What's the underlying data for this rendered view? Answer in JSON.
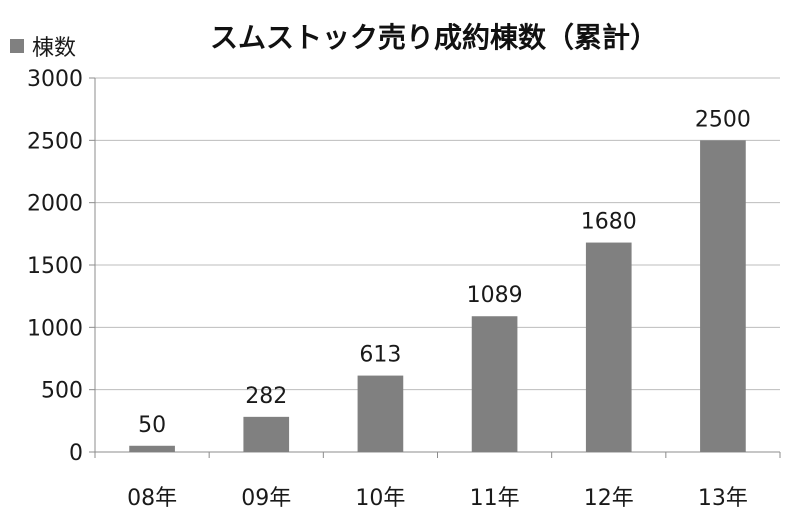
{
  "chart_data": {
    "type": "bar",
    "title": "スムストック売り成約棟数（累計）",
    "legend": "棟数",
    "categories": [
      "08年",
      "09年",
      "10年",
      "11年",
      "12年",
      "13年"
    ],
    "values": [
      50,
      282,
      613,
      1089,
      1680,
      2500
    ],
    "ylim": [
      0,
      3000
    ],
    "yticks": [
      0,
      500,
      1000,
      1500,
      2000,
      2500,
      3000
    ],
    "grid": true,
    "bar_color": "#808080",
    "legend_position": "top-left"
  }
}
